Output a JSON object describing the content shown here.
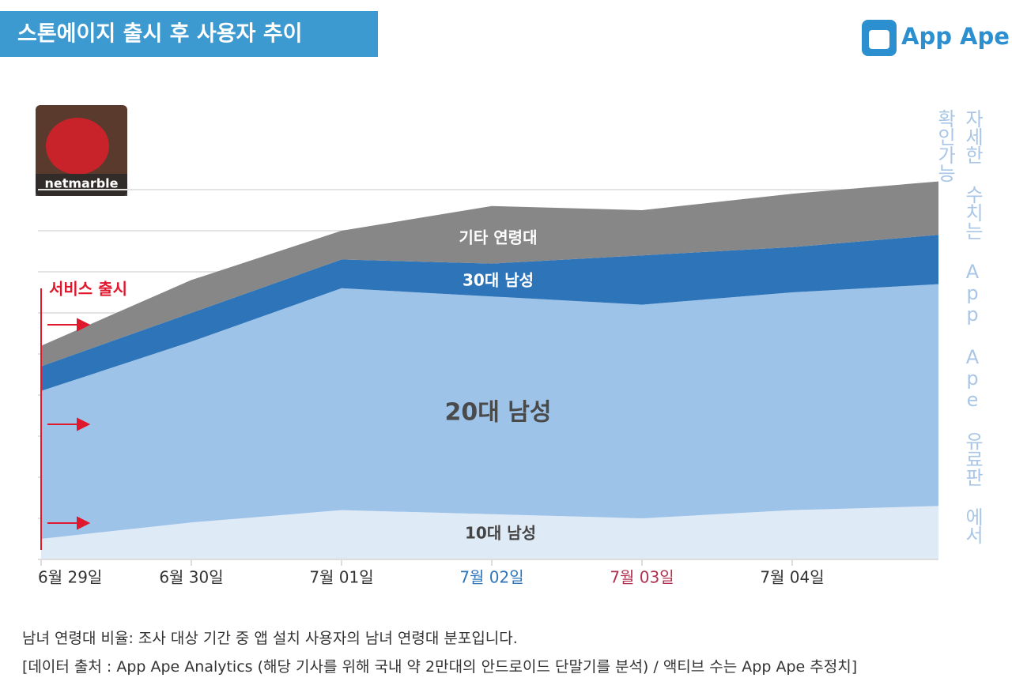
{
  "header": {
    "title": "스톤에이지 출시 후 사용자 추이",
    "logo": "App Ape",
    "icon_label": "netmarble"
  },
  "chart_data": {
    "type": "stacked_area",
    "categories": [
      "6월 29일",
      "6월 30일",
      "7월 01일",
      "7월 02일",
      "7월 03일",
      "7월 04일",
      null
    ],
    "category_colors": [
      "#333333",
      "#333333",
      "#333333",
      "#2e74b9",
      "#b0304f",
      "#333333",
      "#333333"
    ],
    "series": [
      {
        "name": "10대 남성",
        "color": "#dfeaf7",
        "label_color": "#444444",
        "values": [
          0.5,
          0.9,
          1.2,
          1.1,
          1.0,
          1.2,
          1.3
        ]
      },
      {
        "name": "20대 남성",
        "color": "#9dc3e8",
        "label_color": "#4a4a4a",
        "values": [
          3.6,
          4.4,
          5.4,
          5.3,
          5.2,
          5.3,
          5.4
        ]
      },
      {
        "name": "30대 남성",
        "color": "#2e74b9",
        "label_color": "#ffffff",
        "values": [
          0.6,
          0.7,
          0.7,
          0.8,
          1.2,
          1.1,
          1.2
        ]
      },
      {
        "name": "기타 연령대",
        "color": "#878787",
        "label_color": "#ffffff",
        "values": [
          0.5,
          0.8,
          0.7,
          1.4,
          1.1,
          1.3,
          1.3
        ]
      }
    ],
    "ylim": [
      0,
      11
    ],
    "yticks": [
      1,
      2,
      3,
      4,
      5,
      6,
      7,
      8,
      9
    ],
    "grid": true,
    "annotation": "서비스 출시",
    "side_note": "자세한 수치는 App Ape 유료판 에서 확인가능"
  },
  "footer": {
    "note": "남녀 연령대 비율: 조사 대상 기간 중 앱 설치 사용자의 남녀 연령대 분포입니다.",
    "source": "[데이터 출처 : App Ape Analytics (해당 기사를 위해 국내 약 2만대의 안드로이드 단말기를 분석) / 액티브 수는 App Ape 추정치]"
  }
}
